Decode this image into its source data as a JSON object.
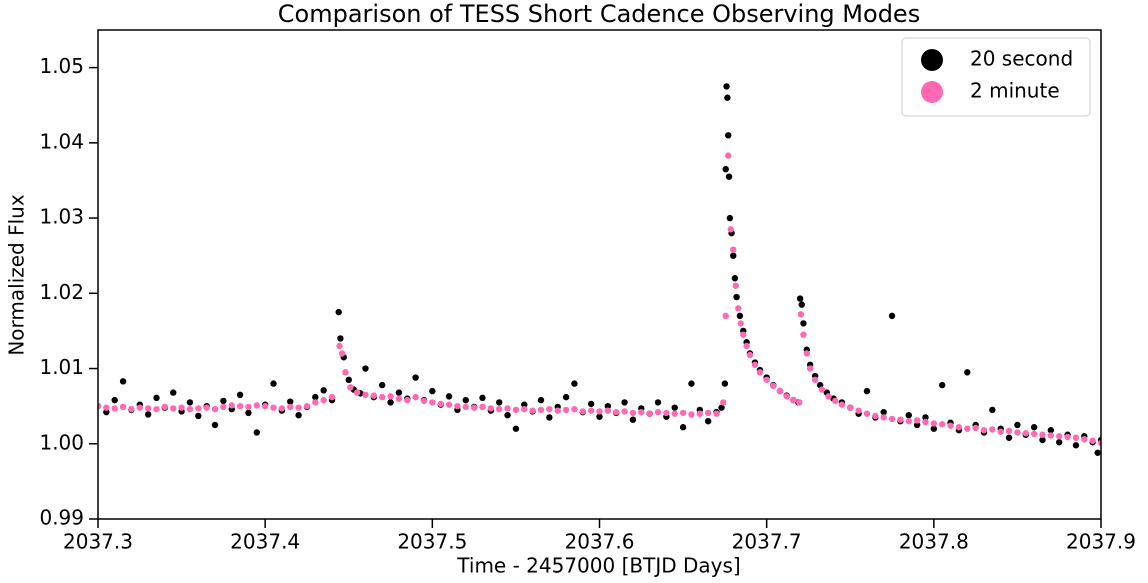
{
  "chart_data": {
    "type": "scatter",
    "title": "Comparison of TESS Short Cadence Observing Modes",
    "xlabel": "Time - 2457000 [BTJD Days]",
    "ylabel": "Normalized Flux",
    "xlim": [
      2037.3,
      2037.9
    ],
    "ylim": [
      0.99,
      1.055
    ],
    "xticks": [
      2037.3,
      2037.4,
      2037.5,
      2037.6,
      2037.7,
      2037.8,
      2037.9
    ],
    "yticks": [
      0.99,
      {
        "value": 1.0,
        "label": "1.00"
      },
      1.01,
      1.02,
      1.03,
      1.04,
      1.05
    ],
    "grid": false,
    "legend": "upper right",
    "series": [
      {
        "name": "20 second",
        "color": "#000000",
        "x": [
          2037.3,
          2037.305,
          2037.31,
          2037.315,
          2037.32,
          2037.325,
          2037.33,
          2037.335,
          2037.34,
          2037.345,
          2037.35,
          2037.355,
          2037.36,
          2037.365,
          2037.37,
          2037.375,
          2037.38,
          2037.385,
          2037.39,
          2037.395,
          2037.4,
          2037.405,
          2037.41,
          2037.415,
          2037.42,
          2037.425,
          2037.43,
          2037.435,
          2037.44,
          2037.444,
          2037.445,
          2037.447,
          2037.45,
          2037.453,
          2037.457,
          2037.46,
          2037.465,
          2037.47,
          2037.475,
          2037.48,
          2037.485,
          2037.49,
          2037.495,
          2037.5,
          2037.505,
          2037.51,
          2037.515,
          2037.52,
          2037.525,
          2037.53,
          2037.535,
          2037.54,
          2037.545,
          2037.55,
          2037.555,
          2037.56,
          2037.565,
          2037.57,
          2037.575,
          2037.58,
          2037.585,
          2037.59,
          2037.595,
          2037.6,
          2037.605,
          2037.61,
          2037.615,
          2037.62,
          2037.625,
          2037.63,
          2037.635,
          2037.64,
          2037.645,
          2037.65,
          2037.655,
          2037.66,
          2037.665,
          2037.67,
          2037.673,
          2037.675,
          2037.6755,
          2037.676,
          2037.6765,
          2037.677,
          2037.6775,
          2037.678,
          2037.679,
          2037.68,
          2037.681,
          2037.682,
          2037.684,
          2037.686,
          2037.688,
          2037.69,
          2037.693,
          2037.696,
          2037.7,
          2037.704,
          2037.708,
          2037.712,
          2037.716,
          2037.719,
          2037.72,
          2037.721,
          2037.722,
          2037.724,
          2037.726,
          2037.729,
          2037.732,
          2037.736,
          2037.74,
          2037.745,
          2037.75,
          2037.755,
          2037.76,
          2037.765,
          2037.77,
          2037.775,
          2037.78,
          2037.785,
          2037.79,
          2037.795,
          2037.8,
          2037.805,
          2037.81,
          2037.815,
          2037.82,
          2037.825,
          2037.83,
          2037.835,
          2037.84,
          2037.845,
          2037.85,
          2037.855,
          2037.86,
          2037.865,
          2037.87,
          2037.875,
          2037.88,
          2037.885,
          2037.89,
          2037.895,
          2037.898,
          2037.9
        ],
        "values": [
          1.005,
          1.0042,
          1.0058,
          1.0083,
          1.0045,
          1.0052,
          1.0039,
          1.0061,
          1.0048,
          1.0068,
          1.0043,
          1.0055,
          1.0037,
          1.005,
          1.0025,
          1.0057,
          1.0046,
          1.0065,
          1.0041,
          1.0015,
          1.0052,
          1.008,
          1.0044,
          1.0056,
          1.0038,
          1.0049,
          1.0062,
          1.0071,
          1.0058,
          1.0175,
          1.014,
          1.0115,
          1.0085,
          1.0072,
          1.0067,
          1.01,
          1.0062,
          1.0078,
          1.0055,
          1.0068,
          1.006,
          1.0088,
          1.0058,
          1.007,
          1.0052,
          1.0063,
          1.0045,
          1.0058,
          1.0049,
          1.0061,
          1.0044,
          1.0055,
          1.0038,
          1.002,
          1.0052,
          1.0043,
          1.0058,
          1.0035,
          1.0049,
          1.0062,
          1.008,
          1.0042,
          1.0053,
          1.0036,
          1.005,
          1.0041,
          1.0055,
          1.0032,
          1.0047,
          1.004,
          1.0055,
          1.0036,
          1.0048,
          1.0022,
          1.008,
          1.0045,
          1.003,
          1.0042,
          1.0048,
          1.008,
          1.0365,
          1.0475,
          1.046,
          1.041,
          1.0355,
          1.03,
          1.028,
          1.025,
          1.022,
          1.0195,
          1.017,
          1.015,
          1.0135,
          1.012,
          1.0108,
          1.0098,
          1.0088,
          1.0078,
          1.007,
          1.0064,
          1.0058,
          1.0055,
          1.0193,
          1.0185,
          1.016,
          1.0125,
          1.0105,
          1.009,
          1.0078,
          1.0068,
          1.006,
          1.0055,
          1.0048,
          1.004,
          1.007,
          1.0035,
          1.0042,
          1.017,
          1.003,
          1.0038,
          1.0025,
          1.0035,
          1.002,
          1.0078,
          1.0028,
          1.0018,
          1.0095,
          1.0025,
          1.0015,
          1.0045,
          1.002,
          1.0008,
          1.0025,
          1.0012,
          1.0022,
          1.0005,
          1.0018,
          1.0002,
          1.0012,
          0.9998,
          1.001,
          1.0002,
          0.9988,
          1.0005
        ]
      },
      {
        "name": "2 minute",
        "color": "#ff69b4",
        "x": [
          2037.3,
          2037.305,
          2037.31,
          2037.315,
          2037.32,
          2037.325,
          2037.33,
          2037.335,
          2037.34,
          2037.345,
          2037.35,
          2037.355,
          2037.36,
          2037.365,
          2037.37,
          2037.375,
          2037.38,
          2037.385,
          2037.39,
          2037.395,
          2037.4,
          2037.405,
          2037.41,
          2037.415,
          2037.42,
          2037.425,
          2037.43,
          2037.435,
          2037.44,
          2037.4445,
          2037.446,
          2037.448,
          2037.451,
          2037.455,
          2037.46,
          2037.465,
          2037.47,
          2037.475,
          2037.48,
          2037.485,
          2037.49,
          2037.495,
          2037.5,
          2037.505,
          2037.51,
          2037.515,
          2037.52,
          2037.525,
          2037.53,
          2037.535,
          2037.54,
          2037.545,
          2037.55,
          2037.555,
          2037.56,
          2037.565,
          2037.57,
          2037.575,
          2037.58,
          2037.585,
          2037.59,
          2037.595,
          2037.6,
          2037.605,
          2037.61,
          2037.615,
          2037.62,
          2037.625,
          2037.63,
          2037.635,
          2037.64,
          2037.645,
          2037.65,
          2037.655,
          2037.66,
          2037.665,
          2037.67,
          2037.674,
          2037.6755,
          2037.677,
          2037.6785,
          2037.68,
          2037.6815,
          2037.683,
          2037.6845,
          2037.686,
          2037.688,
          2037.69,
          2037.693,
          2037.696,
          2037.7,
          2037.704,
          2037.708,
          2037.712,
          2037.716,
          2037.7195,
          2037.7205,
          2037.722,
          2037.724,
          2037.726,
          2037.729,
          2037.733,
          2037.737,
          2037.741,
          2037.745,
          2037.75,
          2037.755,
          2037.76,
          2037.765,
          2037.77,
          2037.775,
          2037.78,
          2037.785,
          2037.79,
          2037.795,
          2037.8,
          2037.805,
          2037.81,
          2037.815,
          2037.82,
          2037.825,
          2037.83,
          2037.835,
          2037.84,
          2037.845,
          2037.85,
          2037.855,
          2037.86,
          2037.865,
          2037.87,
          2037.875,
          2037.88,
          2037.885,
          2037.89,
          2037.895,
          2037.9
        ],
        "values": [
          1.005,
          1.0048,
          1.0047,
          1.0049,
          1.0046,
          1.0048,
          1.0047,
          1.0046,
          1.0049,
          1.0047,
          1.0048,
          1.0046,
          1.0047,
          1.0048,
          1.0046,
          1.0049,
          1.0051,
          1.005,
          1.0049,
          1.0051,
          1.005,
          1.0048,
          1.0047,
          1.0049,
          1.0048,
          1.005,
          1.0055,
          1.0058,
          1.0062,
          1.013,
          1.012,
          1.0095,
          1.0075,
          1.0068,
          1.0065,
          1.0064,
          1.0062,
          1.0063,
          1.006,
          1.0058,
          1.0062,
          1.0057,
          1.0055,
          1.0053,
          1.0052,
          1.005,
          1.0049,
          1.0048,
          1.0049,
          1.0047,
          1.0046,
          1.0047,
          1.0045,
          1.0046,
          1.0044,
          1.0045,
          1.0046,
          1.0044,
          1.0045,
          1.0046,
          1.0043,
          1.0044,
          1.0043,
          1.0044,
          1.0042,
          1.0043,
          1.0041,
          1.0042,
          1.004,
          1.0042,
          1.0041,
          1.004,
          1.0041,
          1.0039,
          1.004,
          1.0041,
          1.004,
          1.0055,
          1.017,
          1.0383,
          1.0285,
          1.0258,
          1.021,
          1.018,
          1.016,
          1.0145,
          1.013,
          1.0118,
          1.0105,
          1.0095,
          1.0085,
          1.0077,
          1.007,
          1.0063,
          1.0058,
          1.0055,
          1.0172,
          1.0145,
          1.012,
          1.01,
          1.0085,
          1.0072,
          1.0063,
          1.0057,
          1.0052,
          1.0048,
          1.0044,
          1.004,
          1.0037,
          1.0035,
          1.0033,
          1.0032,
          1.003,
          1.0031,
          1.0029,
          1.0027,
          1.0026,
          1.0024,
          1.0022,
          1.002,
          1.0021,
          1.0018,
          1.0019,
          1.0016,
          1.0017,
          1.0015,
          1.0014,
          1.0013,
          1.0012,
          1.0011,
          1.001,
          1.0009,
          1.0008,
          1.0006,
          1.0004,
          1.0001
        ]
      }
    ]
  }
}
